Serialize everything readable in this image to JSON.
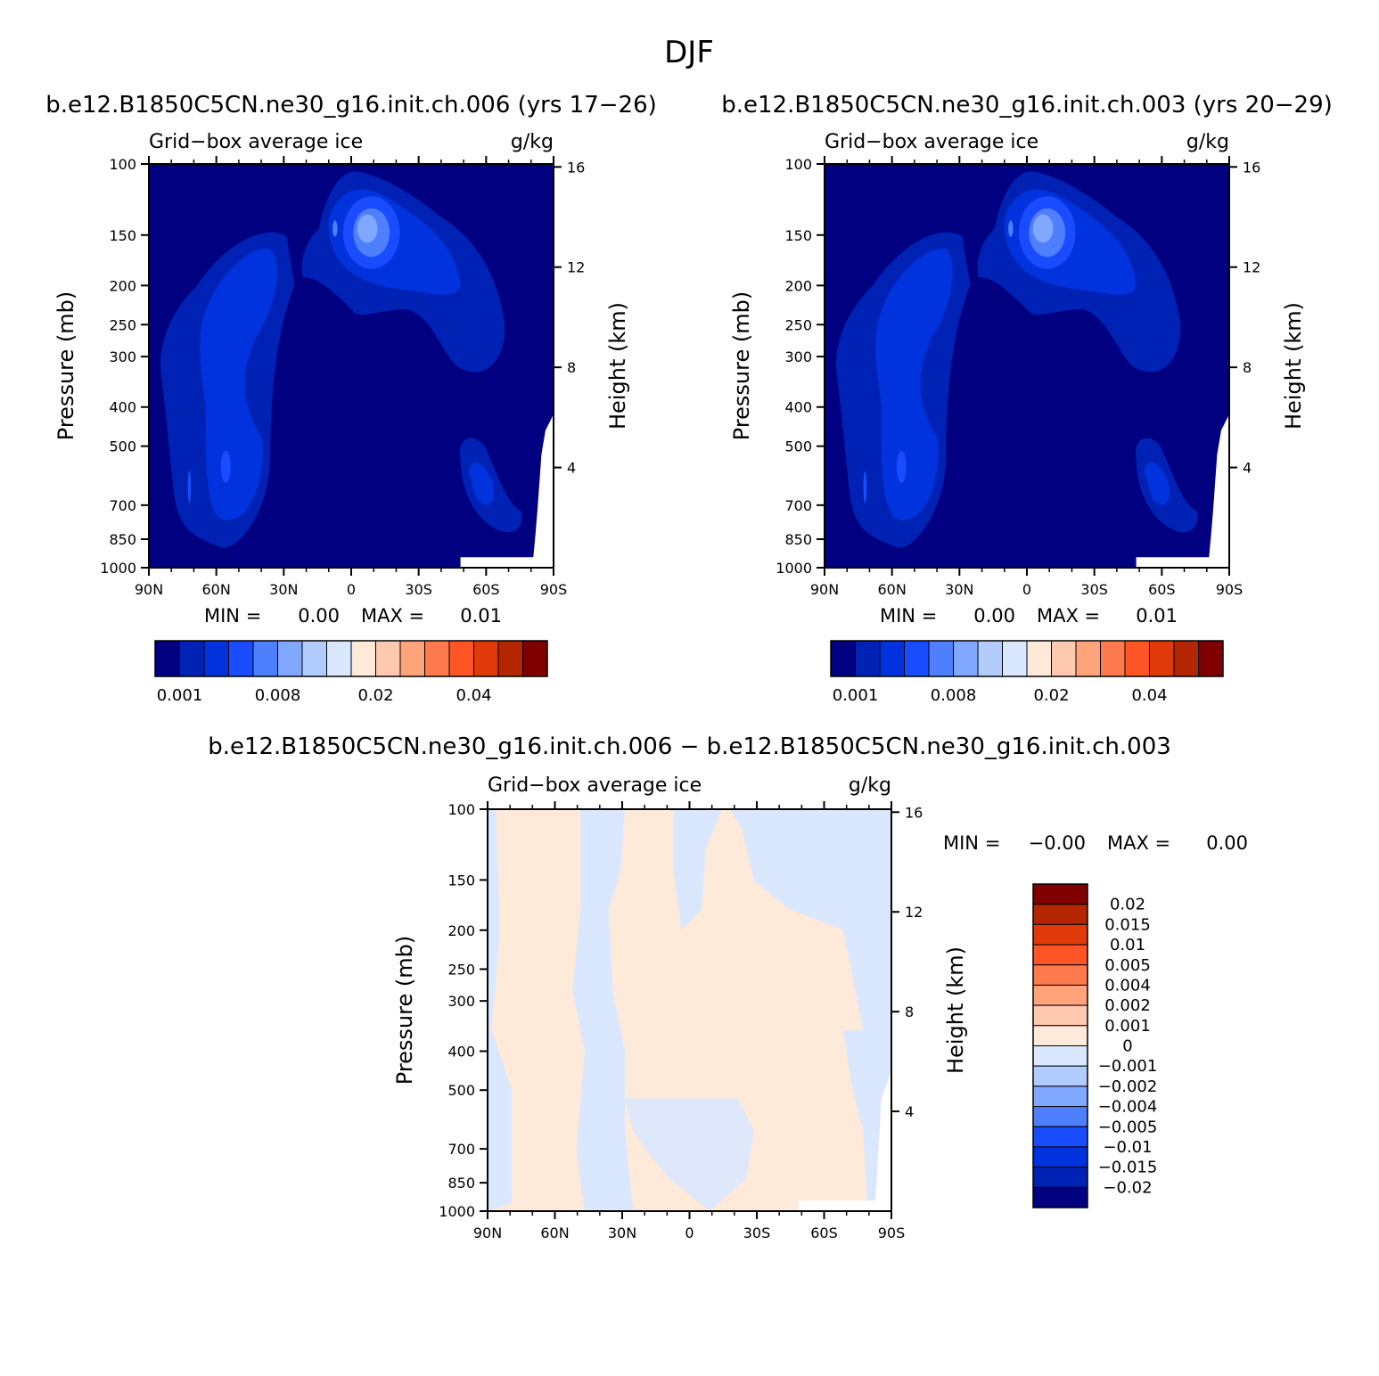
{
  "chart_data": {
    "type": "heatmap",
    "title": "DJF",
    "panels": [
      {
        "title": "b.e12.B1850C5CN.ne30_g16.init.ch.006 (yrs 17−26)",
        "left_label": "Grid−box average ice",
        "right_label": "g/kg",
        "ylabel": "Pressure (mb)",
        "y2label": "Height (km)",
        "xlabel": "",
        "x_ticks": [
          "90N",
          "60N",
          "30N",
          "0",
          "30S",
          "60S",
          "90S"
        ],
        "y_ticks": [
          "100",
          "150",
          "200",
          "250",
          "300",
          "400",
          "500",
          "700",
          "850",
          "1000"
        ],
        "y2_ticks": [
          "16",
          "12",
          "8",
          "4"
        ],
        "min_label": "MIN =",
        "min_value": "0.00",
        "max_label": "MAX =",
        "max_value": "0.01",
        "colorbar_labels": [
          "0.001",
          "0.008",
          "0.02",
          "0.04"
        ]
      },
      {
        "title": "b.e12.B1850C5CN.ne30_g16.init.ch.003 (yrs 20−29)",
        "left_label": "Grid−box average ice",
        "right_label": "g/kg",
        "ylabel": "Pressure (mb)",
        "y2label": "Height (km)",
        "xlabel": "",
        "x_ticks": [
          "90N",
          "60N",
          "30N",
          "0",
          "30S",
          "60S",
          "90S"
        ],
        "y_ticks": [
          "100",
          "150",
          "200",
          "250",
          "300",
          "400",
          "500",
          "700",
          "850",
          "1000"
        ],
        "y2_ticks": [
          "16",
          "12",
          "8",
          "4"
        ],
        "min_label": "MIN =",
        "min_value": "0.00",
        "max_label": "MAX =",
        "max_value": "0.01",
        "colorbar_labels": [
          "0.001",
          "0.008",
          "0.02",
          "0.04"
        ]
      },
      {
        "title": "b.e12.B1850C5CN.ne30_g16.init.ch.006 − b.e12.B1850C5CN.ne30_g16.init.ch.003",
        "left_label": "Grid−box average ice",
        "right_label": "g/kg",
        "ylabel": "Pressure (mb)",
        "y2label": "Height (km)",
        "xlabel": "",
        "x_ticks": [
          "90N",
          "60N",
          "30N",
          "0",
          "30S",
          "60S",
          "90S"
        ],
        "y_ticks": [
          "100",
          "150",
          "200",
          "250",
          "300",
          "400",
          "500",
          "700",
          "850",
          "1000"
        ],
        "y2_ticks": [
          "16",
          "12",
          "8",
          "4"
        ],
        "min_label": "MIN =",
        "min_value": "−0.00",
        "max_label": "MAX =",
        "max_value": "0.00",
        "colorbar_labels": [
          "0.02",
          "0.015",
          "0.01",
          "0.005",
          "0.004",
          "0.002",
          "0.001",
          "0",
          "−0.001",
          "−0.002",
          "−0.004",
          "−0.005",
          "−0.01",
          "−0.015",
          "−0.02"
        ]
      }
    ],
    "x_range": [
      "90N",
      "90S"
    ],
    "y_range": [
      1000,
      100
    ],
    "y_scale": "log",
    "seq_colors": [
      "#000080",
      "#0022b4",
      "#0033dd",
      "#1a4cff",
      "#4d7fff",
      "#80a8ff",
      "#b3ccff",
      "#d9e8ff",
      "#ffe9d9",
      "#ffc9b0",
      "#ffa37a",
      "#ff7a4d",
      "#ff5526",
      "#e03a0a",
      "#b32600",
      "#800000"
    ],
    "diff_colors": [
      "#800000",
      "#b32600",
      "#e03a0a",
      "#ff5526",
      "#ff7a4d",
      "#ffa37a",
      "#ffc9b0",
      "#ffe9d9",
      "#d9e8ff",
      "#b3ccff",
      "#80a8ff",
      "#4d7fff",
      "#1a4cff",
      "#0033dd",
      "#0022b4",
      "#000080"
    ]
  }
}
